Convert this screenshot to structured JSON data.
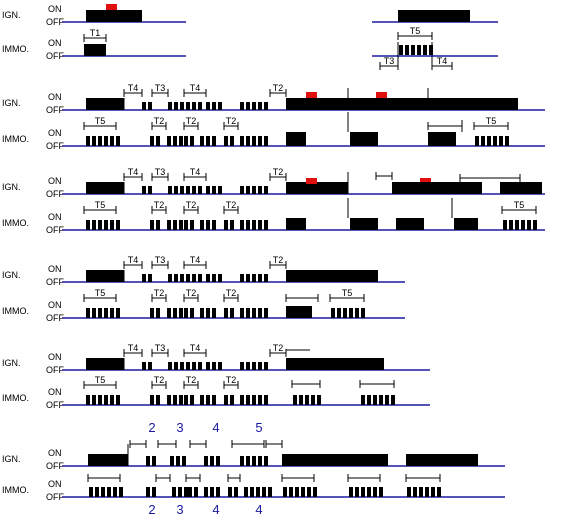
{
  "signal_labels": {
    "ignition": "IGN.",
    "immobilizer": "IMMO."
  },
  "state_labels": {
    "on": "ON",
    "off": "OFF"
  },
  "interval_labels": [
    "T1",
    "T2",
    "T3",
    "T4",
    "T5"
  ],
  "sequence_numbers_ign": [
    "2",
    "3",
    "4",
    "5"
  ],
  "sequence_numbers_immo": [
    "2",
    "3",
    "4",
    "4"
  ],
  "colors": {
    "baseline": "#1a1aa0",
    "signal": "#000000",
    "marker": "#e01010",
    "numbers": "#1a1aa0"
  },
  "diagrams": [
    {
      "id": "diagram-1",
      "marks": [
        "T1",
        "T3",
        "T4",
        "T5"
      ],
      "has_red_markers": true
    },
    {
      "id": "diagram-2",
      "marks": [
        "T4",
        "T3",
        "T4",
        "T2",
        "T5",
        "T2",
        "T2",
        "T2",
        "T5"
      ],
      "has_red_markers": true
    },
    {
      "id": "diagram-3",
      "marks": [
        "T4",
        "T3",
        "T4",
        "T2",
        "T5",
        "T2",
        "T2",
        "T2",
        "T5"
      ],
      "has_red_markers": true
    },
    {
      "id": "diagram-4",
      "marks": [
        "T4",
        "T3",
        "T4",
        "T2",
        "T5",
        "T2",
        "T2",
        "T2",
        "T5"
      ],
      "has_red_markers": false
    },
    {
      "id": "diagram-5",
      "marks": [
        "T4",
        "T3",
        "T4",
        "T2",
        "T2",
        "T2",
        "T2"
      ],
      "has_red_markers": false
    },
    {
      "id": "diagram-6",
      "marks": [],
      "has_red_markers": false
    }
  ]
}
